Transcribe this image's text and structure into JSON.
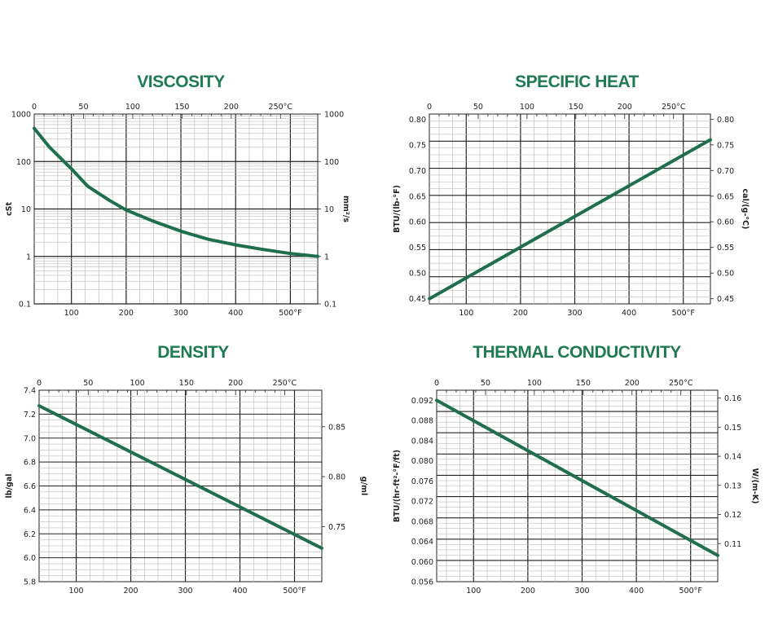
{
  "chart_data": [
    {
      "type": "line",
      "title": "VISCOSITY",
      "ylabel": "cSt",
      "y2label": "mm²/s",
      "scale": "log",
      "x_unit": "°F",
      "x2_unit": "°C",
      "xlim": [
        32,
        550
      ],
      "ylim": [
        0.1,
        1000
      ],
      "x_ticks": [
        "100",
        "200",
        "300",
        "400",
        "500°F"
      ],
      "x2_ticks": [
        "0",
        "50",
        "100",
        "150",
        "200",
        "250°C"
      ],
      "y_ticks": [
        "0.1",
        "1",
        "10",
        "100",
        "1000"
      ],
      "y2_ticks": [
        "0.1",
        "1",
        "10",
        "100",
        "1000"
      ],
      "series": [
        {
          "x": [
            32,
            60,
            100,
            130,
            170,
            200,
            250,
            300,
            350,
            400,
            450,
            500,
            550
          ],
          "y": [
            500,
            200,
            70,
            30,
            15,
            9.5,
            5.5,
            3.4,
            2.3,
            1.75,
            1.4,
            1.15,
            1.0
          ]
        }
      ],
      "grid": true
    },
    {
      "type": "line",
      "title": "SPECIFIC HEAT",
      "ylabel": "BTU/(lb-°F)",
      "y2label": "cal/(g-°C)",
      "scale": "linear",
      "xlim": [
        32,
        550
      ],
      "ylim": [
        0.44,
        0.81
      ],
      "x_ticks": [
        "100",
        "200",
        "300",
        "400",
        "500°F"
      ],
      "x2_ticks": [
        "0",
        "50",
        "100",
        "150",
        "200",
        "250°C"
      ],
      "y_ticks": [
        "0.45",
        "0.50",
        "0.55",
        "0.60",
        "0.65",
        "0.70",
        "0.75",
        "0.80"
      ],
      "y2_ticks": [
        "0.45",
        "0.50",
        "0.55",
        "0.60",
        "0.65",
        "0.70",
        "0.75",
        "0.80"
      ],
      "series": [
        {
          "x": [
            32,
            550
          ],
          "y": [
            0.45,
            0.76
          ]
        }
      ],
      "grid": true
    },
    {
      "type": "line",
      "title": "DENSITY",
      "ylabel": "lb/gal",
      "y2label": "g/ml",
      "scale": "linear",
      "xlim": [
        32,
        550
      ],
      "ylim": [
        5.8,
        7.4
      ],
      "x_ticks": [
        "100",
        "200",
        "300",
        "400",
        "500°F"
      ],
      "x2_ticks": [
        "0",
        "50",
        "100",
        "150",
        "200",
        "250°C"
      ],
      "y_ticks": [
        "5.8",
        "6.0",
        "6.2",
        "6.4",
        "6.6",
        "6.8",
        "7.0",
        "7.2",
        "7.4"
      ],
      "y2_ticks": [
        "0.75",
        "0.80",
        "0.85"
      ],
      "series": [
        {
          "x": [
            32,
            550
          ],
          "y": [
            7.27,
            6.08
          ]
        }
      ],
      "grid": true
    },
    {
      "type": "line",
      "title": "THERMAL CONDUCTIVITY",
      "ylabel": "BTU/(hr-ft²-°F/ft)",
      "y2label": "W/(m-K)",
      "scale": "linear",
      "xlim": [
        32,
        550
      ],
      "ylim": [
        0.056,
        0.094
      ],
      "x_ticks": [
        "100",
        "200",
        "300",
        "400",
        "500°F"
      ],
      "x2_ticks": [
        "0",
        "50",
        "100",
        "150",
        "200",
        "250°C"
      ],
      "y_ticks": [
        "0.056",
        "0.060",
        "0.064",
        "0.068",
        "0.072",
        "0.076",
        "0.080",
        "0.084",
        "0.088",
        "0.092"
      ],
      "y2_ticks": [
        "0.11",
        "0.12",
        "0.13",
        "0.14",
        "0.15",
        "0.16"
      ],
      "series": [
        {
          "x": [
            32,
            550
          ],
          "y": [
            0.092,
            0.0612
          ]
        }
      ],
      "grid": true
    }
  ],
  "colors": {
    "curve": "#1f6e4d",
    "title": "#1f7a55",
    "grid": "#bdbdbd",
    "major": "#222222"
  }
}
